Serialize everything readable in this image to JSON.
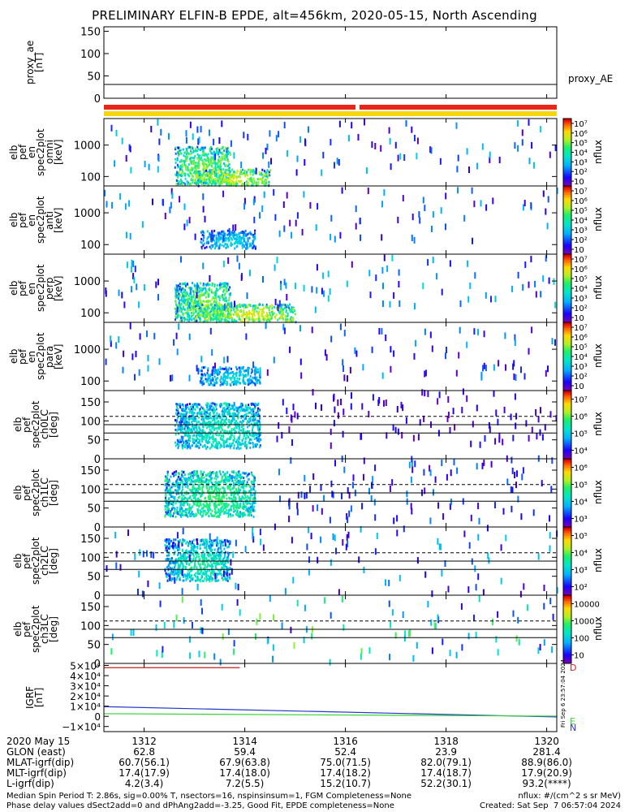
{
  "title": "PRELIMINARY ELFIN-B EPDE, alt=456km, 2020-05-15, North Ascending",
  "colors": {
    "red_bar": "#e8261a",
    "yellow_bar": "#f5d60f",
    "trace_blue": "#2436c8",
    "trace_green": "#35d135",
    "trace_red": "#c81e1e"
  },
  "chart_data": [
    {
      "type": "line",
      "panel": "proxy_ae",
      "ylabel_lines": [
        "proxy_ae",
        "[nT]"
      ],
      "yticks": [
        "0",
        "50",
        "100",
        "150"
      ],
      "ylim": [
        0,
        160
      ],
      "series": [
        {
          "name": "proxy_AE",
          "x": [
            1311.2,
            1320.2
          ],
          "values": [
            31,
            31
          ]
        }
      ],
      "legend_text": "proxy_AE"
    },
    {
      "type": "bar",
      "panel": "orbit-flag-bars",
      "bars": [
        {
          "color": "red",
          "segments": [
            [
              1311.2,
              1316.2
            ],
            [
              1316.28,
              1320.2
            ]
          ]
        },
        {
          "color": "yellow",
          "segments": [
            [
              1311.2,
              1320.2
            ]
          ]
        }
      ]
    },
    {
      "type": "heatmap",
      "panel": "elb-pef-en-spec2plot-omni",
      "ylabel_lines": [
        "elb",
        "pef",
        "en",
        "spec2plot",
        "omni",
        "[keV]"
      ],
      "yticks": [
        "100",
        "1000"
      ],
      "ylog": true,
      "ylim": [
        50,
        7000
      ],
      "zlabel": "nflux",
      "zticks": [
        "10",
        "10²",
        "10³",
        "10⁴",
        "10⁵",
        "10⁶",
        "10⁷"
      ],
      "zlim": [
        10,
        10000000
      ],
      "bursts": [
        {
          "x": [
            1312.6,
            1313.7
          ],
          "y": [
            60,
            950
          ],
          "zmax": 6.0
        },
        {
          "x": [
            1313.0,
            1314.5
          ],
          "y": [
            55,
            180
          ],
          "zmax": 6.6
        },
        {
          "x": [
            1311.2,
            1320.2
          ],
          "y": [
            150,
            7000
          ],
          "zmax": 3.5
        }
      ]
    },
    {
      "type": "heatmap",
      "panel": "elb-pef-en-spec2plot-anti",
      "ylabel_lines": [
        "elb",
        "pef",
        "en",
        "spec2plot",
        "anti",
        "[keV]"
      ],
      "yticks": [
        "100",
        "1000"
      ],
      "ylog": true,
      "ylim": [
        50,
        7000
      ],
      "zlabel": "nflux",
      "zticks": [
        "10",
        "10²",
        "10³",
        "10⁴",
        "10⁵",
        "10⁶",
        "10⁷"
      ],
      "zlim": [
        10,
        10000000
      ],
      "bursts": [
        {
          "x": [
            1313.1,
            1314.2
          ],
          "y": [
            80,
            300
          ],
          "zmax": 4.0
        },
        {
          "x": [
            1311.2,
            1320.2
          ],
          "y": [
            150,
            7000
          ],
          "zmax": 3.0
        }
      ]
    },
    {
      "type": "heatmap",
      "panel": "elb-pef-en-spec2plot-perp",
      "ylabel_lines": [
        "elb",
        "pef",
        "en",
        "spec2plot",
        "perp",
        "[keV]"
      ],
      "yticks": [
        "100",
        "1000"
      ],
      "ylog": true,
      "ylim": [
        50,
        7000
      ],
      "zlabel": "nflux",
      "zticks": [
        "10",
        "10²",
        "10³",
        "10⁴",
        "10⁵",
        "10⁶",
        "10⁷"
      ],
      "zlim": [
        10,
        10000000
      ],
      "bursts": [
        {
          "x": [
            1312.6,
            1313.7
          ],
          "y": [
            60,
            950
          ],
          "zmax": 6.0
        },
        {
          "x": [
            1313.0,
            1315.0
          ],
          "y": [
            55,
            200
          ],
          "zmax": 6.6
        },
        {
          "x": [
            1311.2,
            1320.2
          ],
          "y": [
            150,
            7000
          ],
          "zmax": 3.5
        }
      ]
    },
    {
      "type": "heatmap",
      "panel": "elb-pef-en-spec2plot-para",
      "ylabel_lines": [
        "elb",
        "pef",
        "en",
        "spec2plot",
        "para",
        "[keV]"
      ],
      "yticks": [
        "100",
        "1000"
      ],
      "ylog": true,
      "ylim": [
        50,
        7000
      ],
      "zlabel": "nflux",
      "zticks": [
        "10",
        "10²",
        "10³",
        "10⁴",
        "10⁵",
        "10⁶",
        "10⁷"
      ],
      "zlim": [
        10,
        10000000
      ],
      "bursts": [
        {
          "x": [
            1313.1,
            1314.3
          ],
          "y": [
            80,
            300
          ],
          "zmax": 4.0
        },
        {
          "x": [
            1311.2,
            1320.2
          ],
          "y": [
            150,
            7000
          ],
          "zmax": 3.0
        }
      ]
    },
    {
      "type": "heatmap",
      "panel": "elb-pef-spec2plot-ch0LC",
      "ylabel_lines": [
        "elb",
        "pef",
        "spec2plot",
        "ch0LC",
        "[deg]"
      ],
      "yticks": [
        "0",
        "50",
        "100",
        "150"
      ],
      "ylim": [
        0,
        180
      ],
      "reference_lines": {
        "solid": [
          68,
          90
        ],
        "dashed": [
          112
        ]
      },
      "zlabel": "nflux",
      "zticks": [
        "10⁴",
        "10⁵",
        "10⁶",
        "10⁷"
      ],
      "zlim": [
        3000,
        10000000
      ],
      "bursts": [
        {
          "x": [
            1312.6,
            1314.3
          ],
          "y": [
            30,
            150
          ],
          "zmax": 5.6
        },
        {
          "x": [
            1314.6,
            1320.2
          ],
          "y": [
            40,
            190
          ],
          "zmax": 4.0
        }
      ]
    },
    {
      "type": "heatmap",
      "panel": "elb-pef-spec2plot-ch1LC",
      "ylabel_lines": [
        "elb",
        "pef",
        "spec2plot",
        "ch1LC",
        "[deg]"
      ],
      "yticks": [
        "0",
        "50",
        "100",
        "150"
      ],
      "ylim": [
        0,
        180
      ],
      "reference_lines": {
        "solid": [
          68,
          90
        ],
        "dashed": [
          112
        ]
      },
      "zlabel": "nflux",
      "zticks": [
        "10³",
        "10⁴",
        "10⁵",
        "10⁶"
      ],
      "zlim": [
        300,
        1000000
      ],
      "bursts": [
        {
          "x": [
            1312.4,
            1314.2
          ],
          "y": [
            30,
            150
          ],
          "zmax": 5.0
        },
        {
          "x": [
            1314.6,
            1320.2
          ],
          "y": [
            20,
            190
          ],
          "zmax": 3.5
        }
      ]
    },
    {
      "type": "heatmap",
      "panel": "elb-pef-spec2plot-ch2LC",
      "ylabel_lines": [
        "elb",
        "pef",
        "spec2plot",
        "ch2LC",
        "[deg]"
      ],
      "yticks": [
        "0",
        "50",
        "100",
        "150"
      ],
      "ylim": [
        0,
        180
      ],
      "reference_lines": {
        "solid": [
          68,
          90
        ],
        "dashed": [
          112
        ]
      },
      "zlabel": "nflux",
      "zticks": [
        "10²",
        "10³",
        "10⁴",
        "10⁵"
      ],
      "zlim": [
        30,
        300000
      ],
      "bursts": [
        {
          "x": [
            1312.4,
            1313.7
          ],
          "y": [
            40,
            150
          ],
          "zmax": 4.0
        },
        {
          "x": [
            1311.2,
            1320.2
          ],
          "y": [
            10,
            190
          ],
          "zmax": 3.0
        }
      ]
    },
    {
      "type": "heatmap",
      "panel": "elb-pef-spec2plot-ch3LC",
      "ylabel_lines": [
        "elb",
        "pef",
        "spec2plot",
        "ch3LC",
        "[deg]"
      ],
      "yticks": [
        "0",
        "50",
        "100",
        "150"
      ],
      "ylim": [
        0,
        180
      ],
      "reference_lines": {
        "solid": [
          68,
          90
        ],
        "dashed": [
          112
        ]
      },
      "zlabel": "nflux",
      "zticks": [
        "10",
        "100",
        "1000",
        "10000"
      ],
      "zlim": [
        10,
        10000
      ],
      "bursts": [
        {
          "x": [
            1311.2,
            1320.2
          ],
          "y": [
            10,
            180
          ],
          "zmax": 3.0
        }
      ]
    },
    {
      "type": "line",
      "panel": "igrf",
      "ylabel_lines": [
        "IGRF",
        "[nT]"
      ],
      "yticks": [
        "−1×10⁴",
        "0",
        "1×10⁴",
        "2×10⁴",
        "3×10⁴",
        "4×10⁴",
        "5×10⁴"
      ],
      "ylim": [
        -15000,
        52000
      ],
      "series_labels": [
        "D",
        "E",
        "N"
      ],
      "series": [
        {
          "name": "N",
          "x": [
            1311.2,
            1320.2
          ],
          "values": [
            9500,
            -600
          ]
        },
        {
          "name": "E",
          "x": [
            1311.2,
            1320.2
          ],
          "values": [
            2600,
            200
          ]
        },
        {
          "name": "D",
          "x": [
            1311.2,
            1313.9
          ],
          "values": [
            47800,
            47800
          ]
        }
      ],
      "stamp": "Fri Sep  6 23:57:04 2024"
    }
  ],
  "xaxis": {
    "xlim": [
      1311.2,
      1320.2
    ],
    "rows": [
      {
        "label": "2020 May 15",
        "values": [
          "1312",
          "1314",
          "1316",
          "1318",
          "1320"
        ]
      },
      {
        "label": "GLON (east)",
        "values": [
          "62.8",
          "59.4",
          "52.4",
          "23.9",
          "281.4"
        ]
      },
      {
        "label": "MLAT-igrf(dip)",
        "values": [
          "60.7(56.1)",
          "67.9(63.8)",
          "75.0(71.5)",
          "82.0(79.1)",
          "88.9(86.0)"
        ]
      },
      {
        "label": "MLT-igrf(dip)",
        "values": [
          "17.4(17.9)",
          "17.4(18.0)",
          "17.4(18.2)",
          "17.4(18.7)",
          "17.9(20.9)"
        ]
      },
      {
        "label": "L-igrf(dip)",
        "values": [
          "4.2(3.4)",
          "7.2(5.5)",
          "15.2(10.7)",
          "52.2(30.1)",
          "93.2(****)"
        ]
      }
    ]
  },
  "footer": {
    "left1": "Median Spin Period T: 2.86s, sig=0.00% T, nsectors=16, nspinsinsum=1, FGM Completeness=None",
    "left2": "Phase delay values dSect2add=0 and dPhAng2add=-3.25, Good Fit, EPDE completeness=None",
    "right1": "nflux: #/(cm^2 s sr MeV)",
    "right2": "Created: Sat Sep  7 06:57:04 2024"
  }
}
